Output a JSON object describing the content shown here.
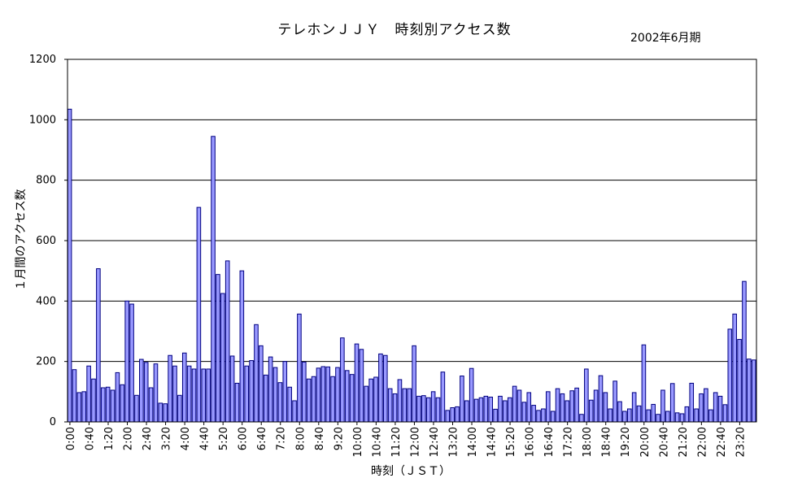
{
  "chart_data": {
    "type": "bar",
    "title": "テレホンＪＪＹ　時刻別アクセス数",
    "subtitle": "2002年6月期",
    "xlabel": "時刻（ＪＳＴ）",
    "ylabel": "１月間のアクセス数",
    "ylim": [
      0,
      1200
    ],
    "yticks": [
      0,
      200,
      400,
      600,
      800,
      1000,
      1200
    ],
    "grid": true,
    "bar_color": "#9999ff",
    "bar_edge_color": "#000080",
    "xtick_labels": [
      "0:00",
      "0:40",
      "1:20",
      "2:00",
      "2:40",
      "3:20",
      "4:00",
      "4:40",
      "5:20",
      "6:00",
      "6:40",
      "7:20",
      "8:00",
      "8:40",
      "9:20",
      "10:00",
      "10:40",
      "11:20",
      "12:00",
      "12:40",
      "13:20",
      "14:00",
      "14:40",
      "15:20",
      "16:00",
      "16:40",
      "17:20",
      "18:00",
      "18:40",
      "19:20",
      "20:00",
      "20:40",
      "21:20",
      "22:00",
      "22:40",
      "23:20"
    ],
    "xtick_every": 4,
    "categories": [
      "0:00",
      "0:10",
      "0:20",
      "0:30",
      "0:40",
      "0:50",
      "1:00",
      "1:10",
      "1:20",
      "1:30",
      "1:40",
      "1:50",
      "2:00",
      "2:10",
      "2:20",
      "2:30",
      "2:40",
      "2:50",
      "3:00",
      "3:10",
      "3:20",
      "3:30",
      "3:40",
      "3:50",
      "4:00",
      "4:10",
      "4:20",
      "4:30",
      "4:40",
      "4:50",
      "5:00",
      "5:10",
      "5:20",
      "5:30",
      "5:40",
      "5:50",
      "6:00",
      "6:10",
      "6:20",
      "6:30",
      "6:40",
      "6:50",
      "7:00",
      "7:10",
      "7:20",
      "7:30",
      "7:40",
      "7:50",
      "8:00",
      "8:10",
      "8:20",
      "8:30",
      "8:40",
      "8:50",
      "9:00",
      "9:10",
      "9:20",
      "9:30",
      "9:40",
      "9:50",
      "10:00",
      "10:10",
      "10:20",
      "10:30",
      "10:40",
      "10:50",
      "11:00",
      "11:10",
      "11:20",
      "11:30",
      "11:40",
      "11:50",
      "12:00",
      "12:10",
      "12:20",
      "12:30",
      "12:40",
      "12:50",
      "13:00",
      "13:10",
      "13:20",
      "13:30",
      "13:40",
      "13:50",
      "14:00",
      "14:10",
      "14:20",
      "14:30",
      "14:40",
      "14:50",
      "15:00",
      "15:10",
      "15:20",
      "15:30",
      "15:40",
      "15:50",
      "16:00",
      "16:10",
      "16:20",
      "16:30",
      "16:40",
      "16:50",
      "17:00",
      "17:10",
      "17:20",
      "17:30",
      "17:40",
      "17:50",
      "18:00",
      "18:10",
      "18:20",
      "18:30",
      "18:40",
      "18:50",
      "19:00",
      "19:10",
      "19:20",
      "19:30",
      "19:40",
      "19:50",
      "20:00",
      "20:10",
      "20:20",
      "20:30",
      "20:40",
      "20:50",
      "21:00",
      "21:10",
      "21:20",
      "21:30",
      "21:40",
      "21:50",
      "22:00",
      "22:10",
      "22:20",
      "22:30",
      "22:40",
      "22:50",
      "23:00",
      "23:10",
      "23:20",
      "23:30",
      "23:40",
      "23:50"
    ],
    "values": [
      1035,
      173,
      97,
      100,
      185,
      142,
      507,
      113,
      115,
      105,
      163,
      123,
      400,
      390,
      88,
      207,
      197,
      113,
      192,
      62,
      60,
      220,
      185,
      88,
      228,
      185,
      175,
      710,
      175,
      175,
      945,
      488,
      425,
      533,
      218,
      128,
      500,
      185,
      203,
      322,
      252,
      155,
      215,
      180,
      130,
      200,
      115,
      70,
      357,
      198,
      142,
      150,
      178,
      183,
      182,
      150,
      180,
      278,
      170,
      157,
      258,
      240,
      118,
      142,
      148,
      225,
      220,
      110,
      93,
      140,
      110,
      110,
      252,
      85,
      87,
      80,
      100,
      80,
      165,
      38,
      47,
      50,
      152,
      70,
      177,
      75,
      80,
      85,
      82,
      42,
      85,
      70,
      80,
      118,
      105,
      65,
      97,
      55,
      38,
      43,
      100,
      35,
      110,
      93,
      70,
      103,
      112,
      25,
      175,
      72,
      105,
      153,
      97,
      43,
      135,
      67,
      35,
      43,
      97,
      53,
      255,
      40,
      58,
      25,
      105,
      35,
      127,
      30,
      27,
      50,
      128,
      43,
      93,
      110,
      40,
      97,
      85,
      57,
      307,
      357,
      273,
      465,
      208,
      205
    ]
  }
}
